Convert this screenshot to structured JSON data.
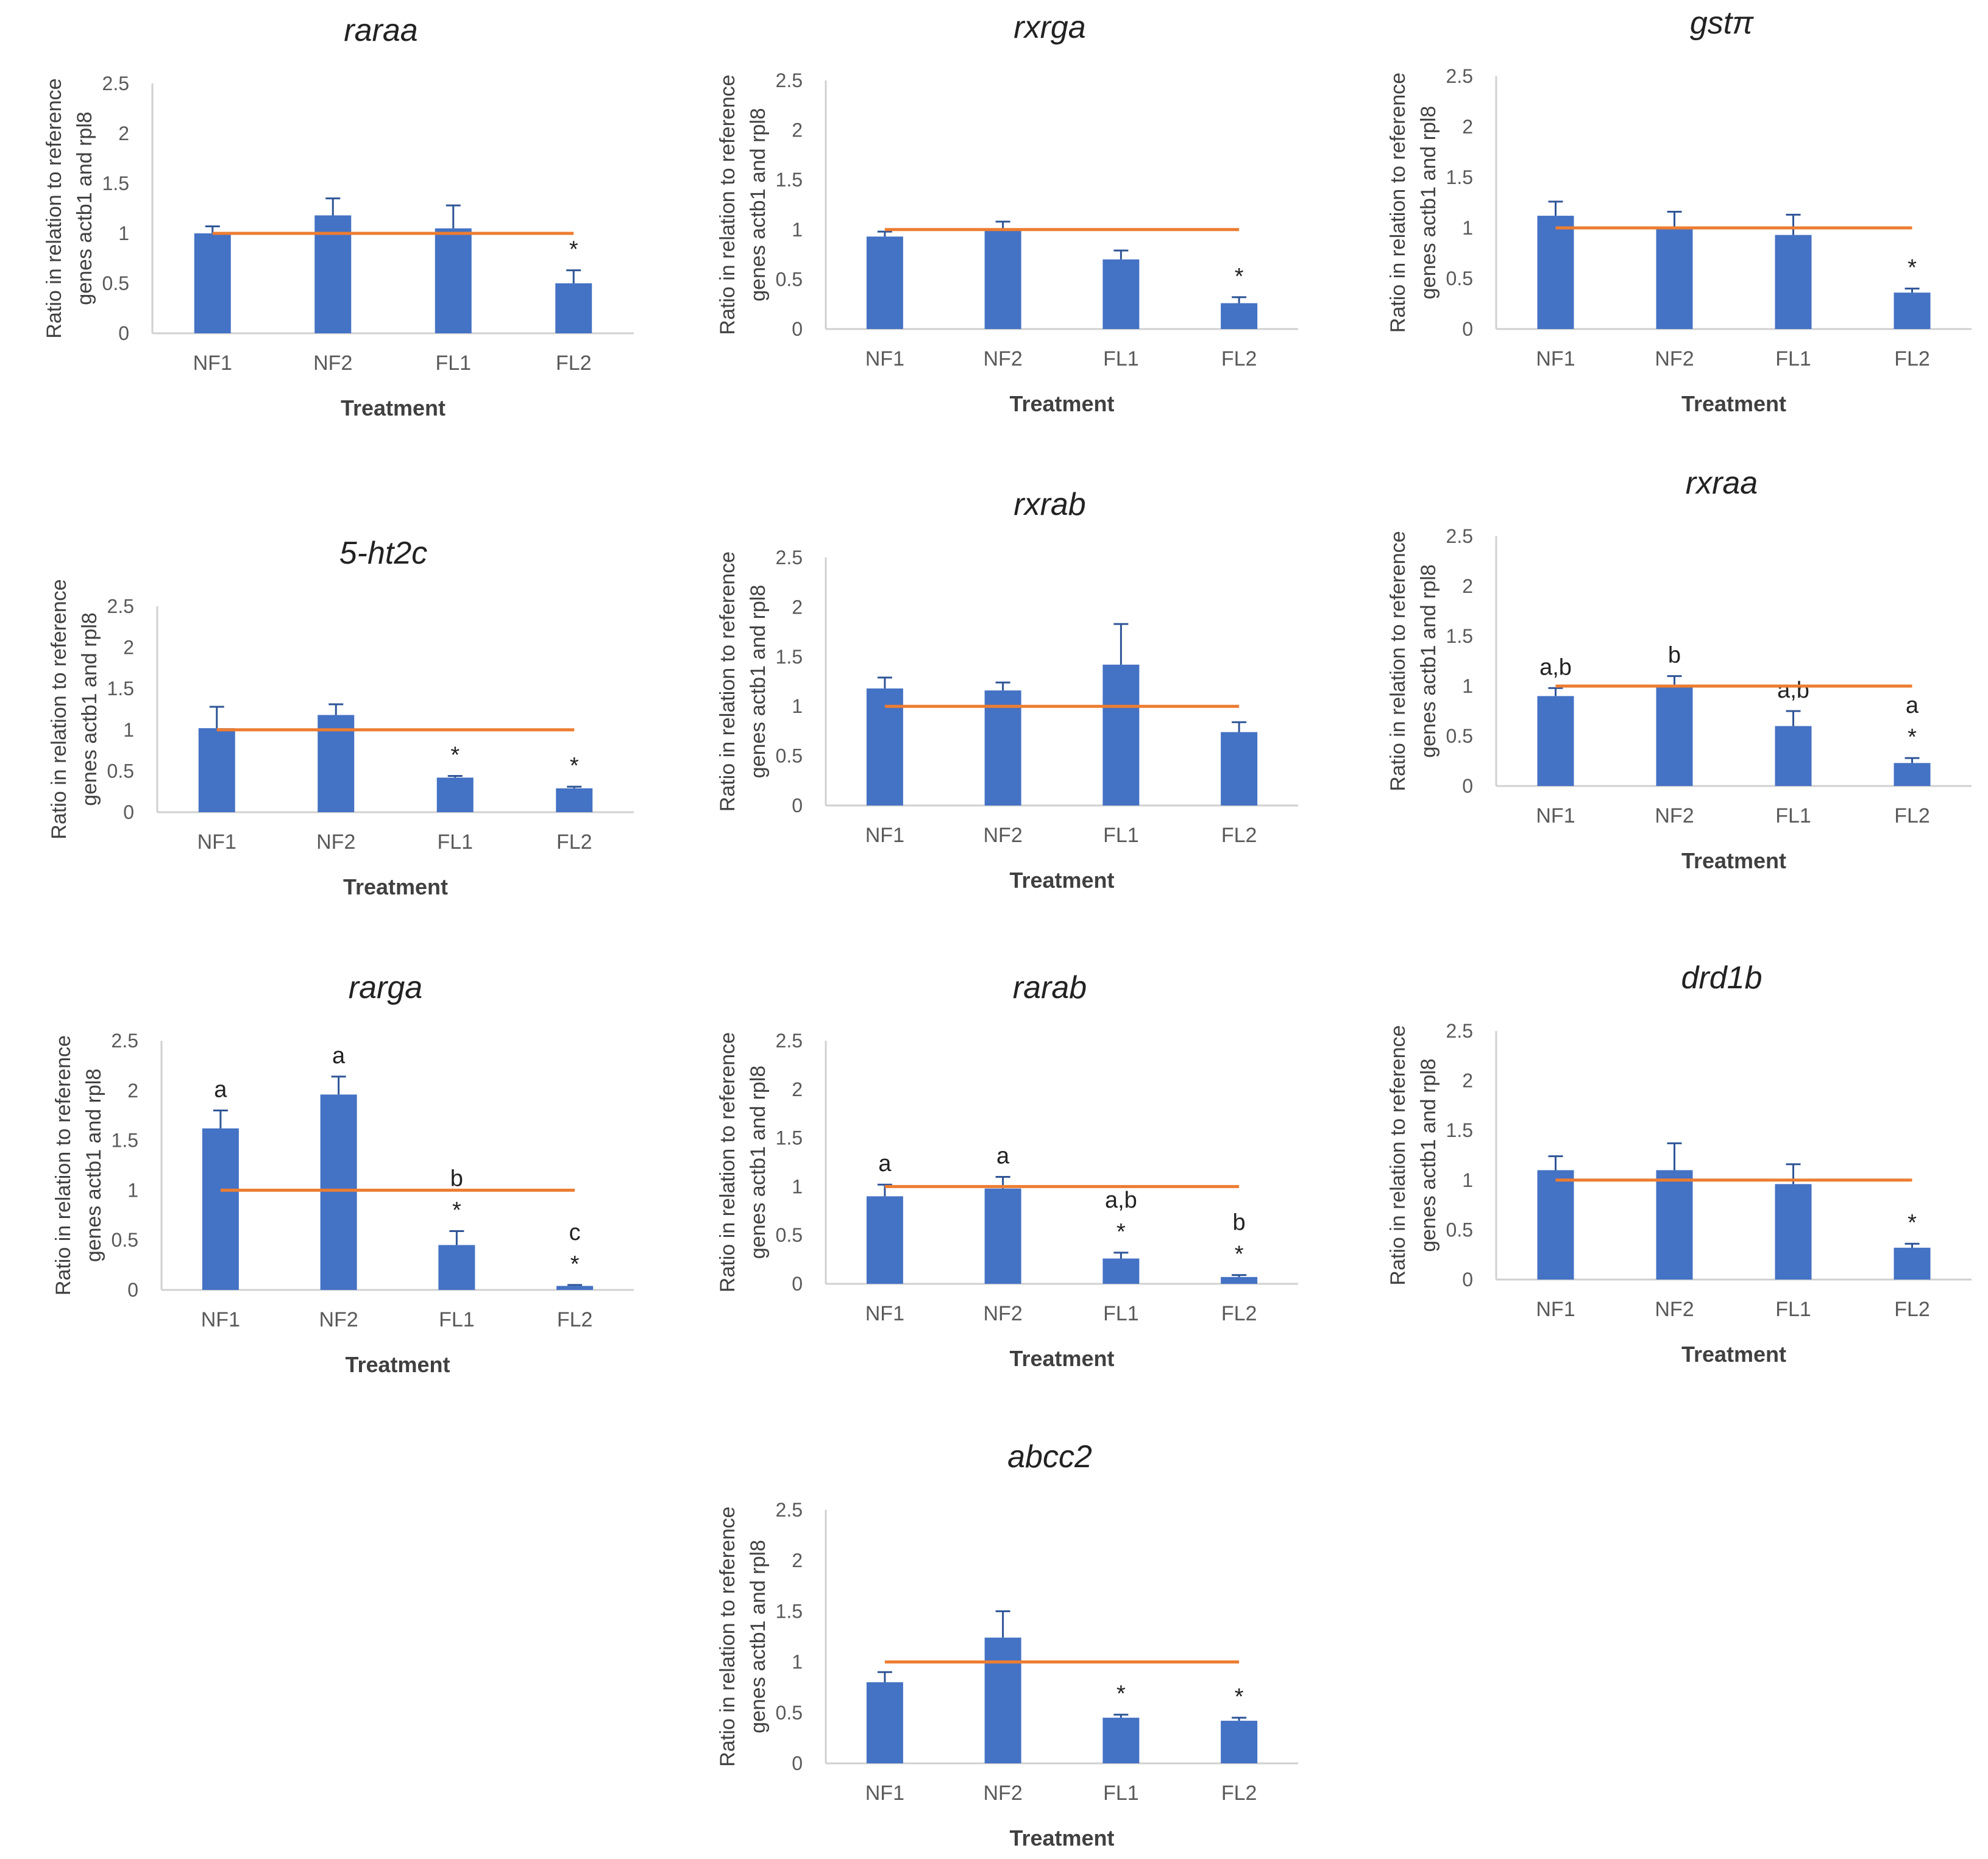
{
  "figure": {
    "colors": {
      "bar": "#4472C4",
      "reference_line": "#ED7D31",
      "error_bar": "#2F5597"
    }
  },
  "chart_data": [
    {
      "type": "bar",
      "title": "raraa",
      "xlabel": "Treatment",
      "ylabel": "Ratio in relation to reference genes actb1 and rpl8",
      "ylabel_lines": [
        "Ratio in relation to reference",
        "genes actb1 and rpl8"
      ],
      "categories": [
        "NF1",
        "NF2",
        "FL1",
        "FL2"
      ],
      "values": [
        1.0,
        1.18,
        1.05,
        0.5
      ],
      "errors": [
        0.07,
        0.17,
        0.23,
        0.13
      ],
      "annotations": [
        "",
        "",
        "",
        "*"
      ],
      "reference_line": 1,
      "ylim": [
        0,
        2.5
      ],
      "yticks": [
        "0",
        "0.5",
        "1",
        "1.5",
        "2",
        "2.5"
      ],
      "grid": false,
      "legend": "none"
    },
    {
      "type": "bar",
      "title": "rxrga",
      "xlabel": "Treatment",
      "ylabel": "Ratio in relation to reference genes actb1 and rpl8",
      "ylabel_lines": [
        "Ratio in relation to reference",
        "genes actb1 and rpl8"
      ],
      "categories": [
        "NF1",
        "NF2",
        "FL1",
        "FL2"
      ],
      "values": [
        0.93,
        1.0,
        0.7,
        0.26
      ],
      "errors": [
        0.05,
        0.08,
        0.09,
        0.06
      ],
      "annotations": [
        "",
        "",
        "",
        "*"
      ],
      "reference_line": 1,
      "ylim": [
        0,
        2.5
      ],
      "yticks": [
        "0",
        "0.5",
        "1",
        "1.5",
        "2",
        "2.5"
      ],
      "grid": false,
      "legend": "none"
    },
    {
      "type": "bar",
      "title": "gstπ",
      "xlabel": "Treatment",
      "ylabel": "Ratio in relation to reference genes actb1 and rpl8",
      "ylabel_lines": [
        "Ratio in relation to reference",
        "genes actb1 and rpl8"
      ],
      "categories": [
        "NF1",
        "NF2",
        "FL1",
        "FL2"
      ],
      "values": [
        1.12,
        1.0,
        0.93,
        0.36
      ],
      "errors": [
        0.14,
        0.16,
        0.2,
        0.04
      ],
      "annotations": [
        "",
        "",
        "",
        "*"
      ],
      "reference_line": 1,
      "ylim": [
        0,
        2.5
      ],
      "yticks": [
        "0",
        "0.5",
        "1",
        "1.5",
        "2",
        "2.5"
      ],
      "grid": false,
      "legend": "none"
    },
    {
      "type": "bar",
      "title": "5-ht2c",
      "xlabel": "Treatment",
      "ylabel": "Ratio in relation to reference genes actb1 and rpl8",
      "ylabel_lines": [
        "Ratio in relation to reference",
        "genes actb1 and rpl8"
      ],
      "categories": [
        "NF1",
        "NF2",
        "FL1",
        "FL2"
      ],
      "values": [
        1.02,
        1.18,
        0.42,
        0.29
      ],
      "errors": [
        0.26,
        0.13,
        0.02,
        0.02
      ],
      "annotations": [
        "",
        "",
        "*",
        "*"
      ],
      "reference_line": 1,
      "ylim": [
        0,
        2.5
      ],
      "yticks": [
        "0",
        "0.5",
        "1",
        "1.5",
        "2",
        "2.5"
      ],
      "grid": false,
      "legend": "none"
    },
    {
      "type": "bar",
      "title": "rxrab",
      "xlabel": "Treatment",
      "ylabel": "Ratio in relation to reference genes actb1 and rpl8",
      "ylabel_lines": [
        "Ratio in relation to reference",
        "genes actb1 and rpl8"
      ],
      "categories": [
        "NF1",
        "NF2",
        "FL1",
        "FL2"
      ],
      "values": [
        1.18,
        1.16,
        1.42,
        0.74
      ],
      "errors": [
        0.11,
        0.08,
        0.41,
        0.1
      ],
      "annotations": [
        "",
        "",
        "",
        ""
      ],
      "reference_line": 1,
      "ylim": [
        0,
        2.5
      ],
      "yticks": [
        "0",
        "0.5",
        "1",
        "1.5",
        "2",
        "2.5"
      ],
      "grid": false,
      "legend": "none"
    },
    {
      "type": "bar",
      "title": "rxraa",
      "xlabel": "Treatment",
      "ylabel": "Ratio in relation to reference genes actb1 and rpl8",
      "ylabel_lines": [
        "Ratio in relation to reference",
        "genes actb1 and rpl8"
      ],
      "categories": [
        "NF1",
        "NF2",
        "FL1",
        "FL2"
      ],
      "values": [
        0.9,
        0.99,
        0.6,
        0.23
      ],
      "errors": [
        0.08,
        0.11,
        0.15,
        0.05
      ],
      "annotations": [
        "a,b",
        "b",
        "a,b",
        "a\n*"
      ],
      "reference_line": 1,
      "ylim": [
        0,
        2.5
      ],
      "yticks": [
        "0",
        "0.5",
        "1",
        "1.5",
        "2",
        "2.5"
      ],
      "grid": false,
      "legend": "none"
    },
    {
      "type": "bar",
      "title": "rarga",
      "xlabel": "Treatment",
      "ylabel": "Ratio in relation to reference genes actb1 and rpl8",
      "ylabel_lines": [
        "Ratio in relation to reference",
        "genes actb1 and rpl8"
      ],
      "categories": [
        "NF1",
        "NF2",
        "FL1",
        "FL2"
      ],
      "values": [
        1.62,
        1.96,
        0.45,
        0.04
      ],
      "errors": [
        0.18,
        0.18,
        0.14,
        0.01
      ],
      "annotations": [
        "a",
        "a",
        "b\n*",
        "c\n*"
      ],
      "reference_line": 1,
      "ylim": [
        0,
        2.5
      ],
      "yticks": [
        "0",
        "0.5",
        "1",
        "1.5",
        "2",
        "2.5"
      ],
      "grid": false,
      "legend": "none"
    },
    {
      "type": "bar",
      "title": "rarab",
      "xlabel": "Treatment",
      "ylabel": "Ratio in relation to reference genes actb1 and rpl8",
      "ylabel_lines": [
        "Ratio in relation to reference",
        "genes actb1 and rpl8"
      ],
      "categories": [
        "NF1",
        "NF2",
        "FL1",
        "FL2"
      ],
      "values": [
        0.9,
        0.98,
        0.26,
        0.07
      ],
      "errors": [
        0.12,
        0.12,
        0.06,
        0.02
      ],
      "annotations": [
        "a",
        "a",
        "a,b\n*",
        "b\n*"
      ],
      "reference_line": 1,
      "ylim": [
        0,
        2.5
      ],
      "yticks": [
        "0",
        "0.5",
        "1",
        "1.5",
        "2",
        "2.5"
      ],
      "grid": false,
      "legend": "none"
    },
    {
      "type": "bar",
      "title": "drd1b",
      "xlabel": "Treatment",
      "ylabel": "Ratio in relation to reference genes actb1 and rpl8",
      "ylabel_lines": [
        "Ratio in relation to reference",
        "genes actb1 and rpl8"
      ],
      "categories": [
        "NF1",
        "NF2",
        "FL1",
        "FL2"
      ],
      "values": [
        1.1,
        1.1,
        0.96,
        0.32
      ],
      "errors": [
        0.14,
        0.27,
        0.2,
        0.04
      ],
      "annotations": [
        "",
        "",
        "",
        "*"
      ],
      "reference_line": 1,
      "ylim": [
        0,
        2.5
      ],
      "yticks": [
        "0",
        "0.5",
        "1",
        "1.5",
        "2",
        "2.5"
      ],
      "grid": false,
      "legend": "none"
    },
    {
      "type": "bar",
      "title": "abcc2",
      "xlabel": "Treatment",
      "ylabel": "Ratio in relation to reference genes actb1 and rpl8",
      "ylabel_lines": [
        "Ratio in relation to reference",
        "genes actb1 and rpl8"
      ],
      "categories": [
        "NF1",
        "NF2",
        "FL1",
        "FL2"
      ],
      "values": [
        0.8,
        1.24,
        0.45,
        0.42
      ],
      "errors": [
        0.1,
        0.26,
        0.03,
        0.03
      ],
      "annotations": [
        "",
        "",
        "*",
        "*"
      ],
      "reference_line": 1,
      "ylim": [
        0,
        2.5
      ],
      "yticks": [
        "0",
        "0.5",
        "1",
        "1.5",
        "2",
        "2.5"
      ],
      "grid": false,
      "legend": "none"
    }
  ]
}
